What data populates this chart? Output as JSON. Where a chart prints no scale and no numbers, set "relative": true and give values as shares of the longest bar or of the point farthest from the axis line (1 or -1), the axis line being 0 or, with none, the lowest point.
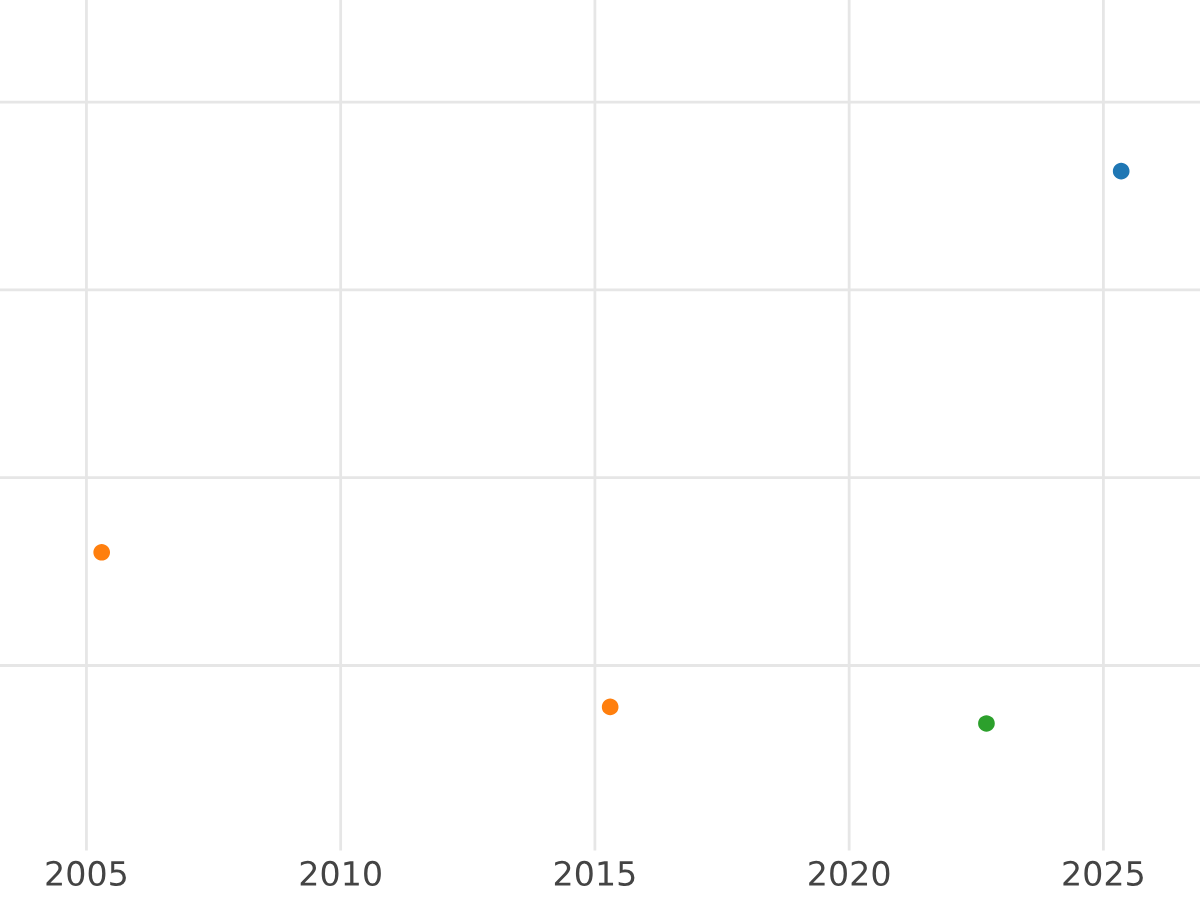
{
  "chart_data": {
    "type": "scatter",
    "relative": true,
    "x": [
      2025.35,
      2005.3,
      2015.3,
      2022.7
    ],
    "values": [
      1,
      0.31,
      0.03,
      0
    ],
    "colors": [
      "#1f77b4",
      "#ff7f0e",
      "#ff7f0e",
      "#2ca02c"
    ],
    "xlim": [
      2003.3,
      2026.9
    ],
    "xticks": [
      2005,
      2010,
      2015,
      2020,
      2025
    ],
    "grid": true,
    "tick_labels": "x",
    "marker": "circle"
  }
}
